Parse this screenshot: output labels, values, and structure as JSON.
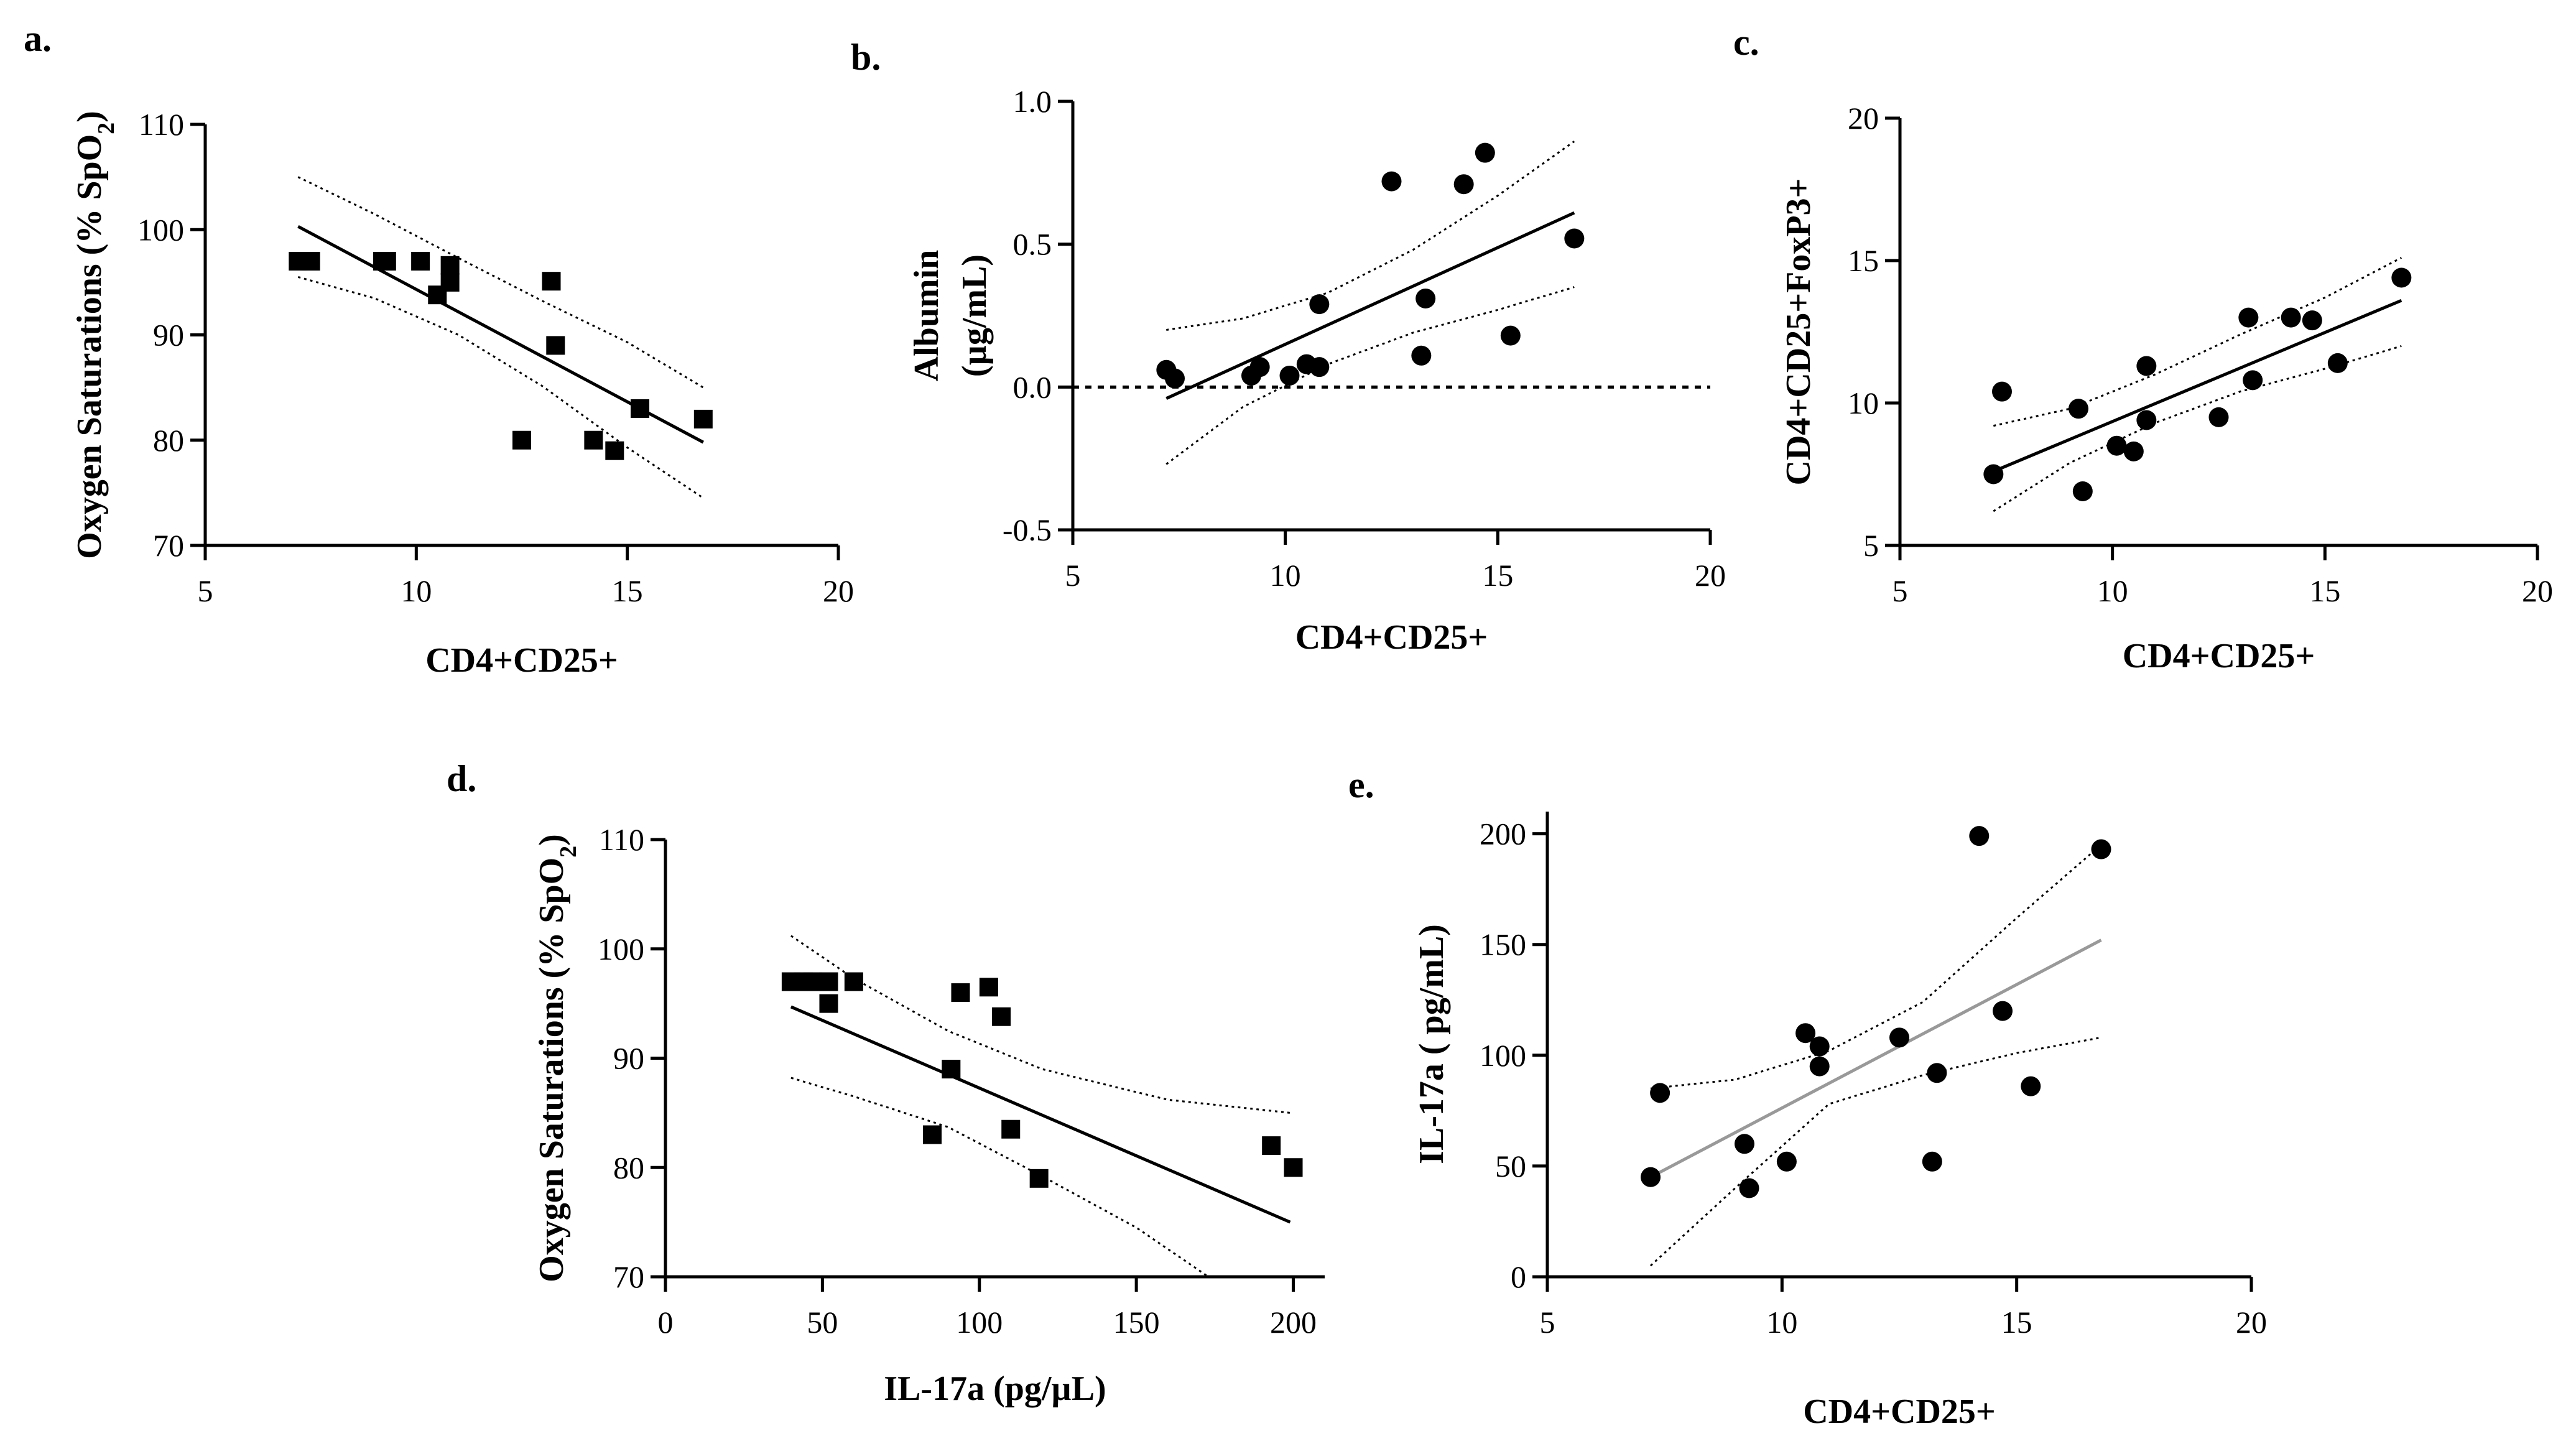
{
  "chart_data": [
    {
      "panel": "a.",
      "type": "scatter",
      "marker": "square",
      "xlabel": "CD4+CD25+",
      "ylabel": "Oxygen Saturations (% SpO",
      "ylabel_sub": "2",
      "ylabel_tail": ")",
      "xlim": [
        5,
        20
      ],
      "ylim": [
        70,
        110
      ],
      "xticks": [
        5,
        10,
        15,
        20
      ],
      "yticks": [
        70,
        80,
        90,
        100,
        110
      ],
      "points": [
        [
          7.2,
          97
        ],
        [
          7.5,
          97
        ],
        [
          9.2,
          97
        ],
        [
          9.3,
          97
        ],
        [
          10.1,
          97
        ],
        [
          10.8,
          96.6
        ],
        [
          10.8,
          95
        ],
        [
          10.5,
          93.8
        ],
        [
          13.2,
          95.1
        ],
        [
          13.3,
          89
        ],
        [
          12.5,
          80
        ],
        [
          14.2,
          80
        ],
        [
          14.7,
          79
        ],
        [
          15.3,
          83
        ],
        [
          16.8,
          82
        ]
      ],
      "fit": {
        "x": [
          7.2,
          16.8
        ],
        "y": [
          100.3,
          79.8
        ]
      },
      "ci_upper": [
        [
          7.2,
          105
        ],
        [
          9,
          101.5
        ],
        [
          11,
          97.3
        ],
        [
          13,
          93.2
        ],
        [
          15,
          89.3
        ],
        [
          16.8,
          85
        ]
      ],
      "ci_lower": [
        [
          7.2,
          95.5
        ],
        [
          9,
          93.5
        ],
        [
          11,
          90
        ],
        [
          13,
          85.1
        ],
        [
          15,
          79.3
        ],
        [
          16.8,
          74.5
        ]
      ]
    },
    {
      "panel": "b.",
      "type": "scatter",
      "marker": "circle",
      "xlabel": "CD4+CD25+",
      "ylabel": "Albumin",
      "ylabel2": "(µg/mL)",
      "xlim": [
        5,
        20
      ],
      "ylim": [
        -0.5,
        1.0
      ],
      "xticks": [
        5,
        10,
        15,
        20
      ],
      "yticks": [
        -0.5,
        0.0,
        0.5,
        1.0
      ],
      "ytick_labels": [
        "-0.5",
        "0.0",
        "0.5",
        "1.0"
      ],
      "zero_reference_line": true,
      "points": [
        [
          7.2,
          0.06
        ],
        [
          7.4,
          0.03
        ],
        [
          9.2,
          0.04
        ],
        [
          9.4,
          0.07
        ],
        [
          10.1,
          0.04
        ],
        [
          10.5,
          0.08
        ],
        [
          10.8,
          0.07
        ],
        [
          10.8,
          0.29
        ],
        [
          12.5,
          0.72
        ],
        [
          13.2,
          0.11
        ],
        [
          13.3,
          0.31
        ],
        [
          14.2,
          0.71
        ],
        [
          14.7,
          0.82
        ],
        [
          15.3,
          0.18
        ],
        [
          16.8,
          0.52
        ]
      ],
      "fit": {
        "x": [
          7.2,
          16.8
        ],
        "y": [
          -0.04,
          0.61
        ]
      },
      "ci_upper": [
        [
          7.2,
          0.2
        ],
        [
          9,
          0.24
        ],
        [
          11,
          0.33
        ],
        [
          13,
          0.48
        ],
        [
          15,
          0.67
        ],
        [
          16.8,
          0.86
        ]
      ],
      "ci_lower": [
        [
          7.2,
          -0.27
        ],
        [
          9,
          -0.07
        ],
        [
          11,
          0.08
        ],
        [
          13,
          0.19
        ],
        [
          15,
          0.27
        ],
        [
          16.8,
          0.35
        ]
      ]
    },
    {
      "panel": "c.",
      "type": "scatter",
      "marker": "circle",
      "xlabel": "CD4+CD25+",
      "ylabel": "CD4+CD25+FoxP3+",
      "xlim": [
        5,
        20
      ],
      "ylim": [
        5,
        20
      ],
      "xticks": [
        5,
        10,
        15,
        20
      ],
      "yticks": [
        5,
        10,
        15,
        20
      ],
      "points": [
        [
          7.2,
          7.5
        ],
        [
          7.4,
          10.4
        ],
        [
          9.2,
          9.8
        ],
        [
          9.3,
          6.9
        ],
        [
          10.1,
          8.5
        ],
        [
          10.5,
          8.3
        ],
        [
          10.8,
          9.4
        ],
        [
          10.8,
          11.3
        ],
        [
          12.5,
          9.5
        ],
        [
          13.2,
          13
        ],
        [
          13.3,
          10.8
        ],
        [
          14.2,
          13
        ],
        [
          14.7,
          12.9
        ],
        [
          15.3,
          11.4
        ],
        [
          16.8,
          14.4
        ]
      ],
      "fit": {
        "x": [
          7.2,
          16.8
        ],
        "y": [
          7.6,
          13.6
        ]
      },
      "ci_upper": [
        [
          7.2,
          9.2
        ],
        [
          9,
          9.8
        ],
        [
          11,
          11
        ],
        [
          13,
          12.4
        ],
        [
          15,
          13.7
        ],
        [
          16.8,
          15.1
        ]
      ],
      "ci_lower": [
        [
          7.2,
          6.2
        ],
        [
          9,
          7.9
        ],
        [
          11,
          9.3
        ],
        [
          13,
          10.4
        ],
        [
          15,
          11.2
        ],
        [
          16.8,
          12
        ]
      ]
    },
    {
      "panel": "d.",
      "type": "scatter",
      "marker": "square",
      "xlabel": "IL-17a (pg/µL)",
      "ylabel": "Oxygen Saturations (% SpO",
      "ylabel_sub": "2",
      "ylabel_tail": ")",
      "xlim": [
        0,
        210
      ],
      "ylim": [
        70,
        110
      ],
      "xticks": [
        0,
        50,
        100,
        150,
        200
      ],
      "yticks": [
        70,
        80,
        90,
        100,
        110
      ],
      "points": [
        [
          40,
          97
        ],
        [
          44,
          97
        ],
        [
          47,
          97
        ],
        [
          52,
          97
        ],
        [
          60,
          97
        ],
        [
          52,
          95
        ],
        [
          94,
          96
        ],
        [
          103,
          96.5
        ],
        [
          107,
          93.8
        ],
        [
          91,
          89
        ],
        [
          85,
          83
        ],
        [
          110,
          83.5
        ],
        [
          119,
          79
        ],
        [
          193,
          82
        ],
        [
          200,
          80
        ]
      ],
      "fit": {
        "x": [
          40,
          199
        ],
        "y": [
          94.7,
          75
        ]
      },
      "ci_upper": [
        [
          40,
          101.2
        ],
        [
          60,
          97.3
        ],
        [
          90,
          92.5
        ],
        [
          120,
          89
        ],
        [
          160,
          86.2
        ],
        [
          199,
          85
        ]
      ],
      "ci_lower": [
        [
          40,
          88.2
        ],
        [
          60,
          86.5
        ],
        [
          90,
          83.7
        ],
        [
          120,
          79.2
        ],
        [
          150,
          74.5
        ],
        [
          173,
          70
        ]
      ]
    },
    {
      "panel": "e.",
      "type": "scatter",
      "marker": "circle",
      "xlabel": "CD4+CD25+",
      "ylabel": "IL-17a ( pg/mL)",
      "xlim": [
        5,
        20
      ],
      "ylim": [
        0,
        210
      ],
      "xticks": [
        5,
        10,
        15,
        20
      ],
      "yticks": [
        0,
        50,
        100,
        150,
        200
      ],
      "points": [
        [
          7.2,
          45
        ],
        [
          7.4,
          83
        ],
        [
          9.2,
          60
        ],
        [
          9.3,
          40
        ],
        [
          10.1,
          52
        ],
        [
          10.5,
          110
        ],
        [
          10.8,
          104
        ],
        [
          10.8,
          95
        ],
        [
          12.5,
          108
        ],
        [
          13.2,
          52
        ],
        [
          13.3,
          92
        ],
        [
          14.2,
          199
        ],
        [
          14.7,
          120
        ],
        [
          15.3,
          86
        ],
        [
          16.8,
          193
        ]
      ],
      "fit": {
        "x": [
          7.2,
          16.8
        ],
        "y": [
          45,
          152
        ]
      },
      "fit_color": "#999999",
      "ci_upper": [
        [
          7.2,
          85
        ],
        [
          9,
          89
        ],
        [
          11,
          102
        ],
        [
          13,
          124
        ],
        [
          15,
          162
        ],
        [
          16.8,
          195
        ]
      ],
      "ci_lower": [
        [
          7.2,
          5
        ],
        [
          9,
          40
        ],
        [
          11,
          78
        ],
        [
          13,
          91
        ],
        [
          15,
          101
        ],
        [
          16.8,
          108
        ]
      ]
    }
  ]
}
